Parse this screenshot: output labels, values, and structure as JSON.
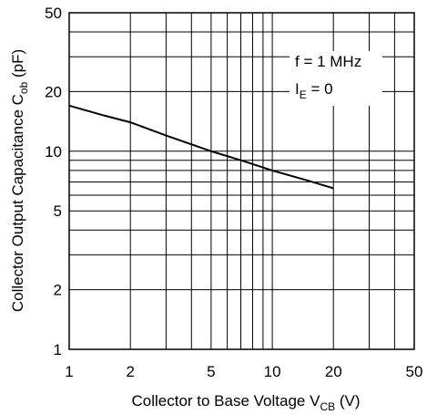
{
  "chart_data": {
    "type": "line",
    "xscale": "log",
    "yscale": "log",
    "xlim": [
      1,
      50
    ],
    "ylim": [
      1,
      50
    ],
    "grid": true,
    "xticks": [
      1,
      2,
      5,
      10,
      20,
      50
    ],
    "xtick_labels": [
      "1",
      "2",
      "5",
      "10",
      "20",
      "50"
    ],
    "yticks": [
      1,
      2,
      5,
      10,
      20,
      50
    ],
    "ytick_labels": [
      "1",
      "2",
      "5",
      "10",
      "20",
      "50"
    ],
    "xlabel": {
      "main": "Collector to Base Voltage  V",
      "sub": "CB",
      "unit": "  (V)"
    },
    "ylabel": {
      "main": "Collector Output Capacitance  C",
      "sub": "ob",
      "unit": "  (pF)"
    },
    "annotations": {
      "line1": "f = 1 MHz",
      "line2_main": "I",
      "line2_sub": "E",
      "line2_rest": " = 0"
    },
    "series": [
      {
        "x": [
          1,
          1.5,
          2,
          3,
          5,
          7,
          10,
          15,
          20
        ],
        "y": [
          17,
          15.1,
          14,
          12,
          10,
          9,
          8,
          7.1,
          6.5
        ]
      }
    ]
  }
}
